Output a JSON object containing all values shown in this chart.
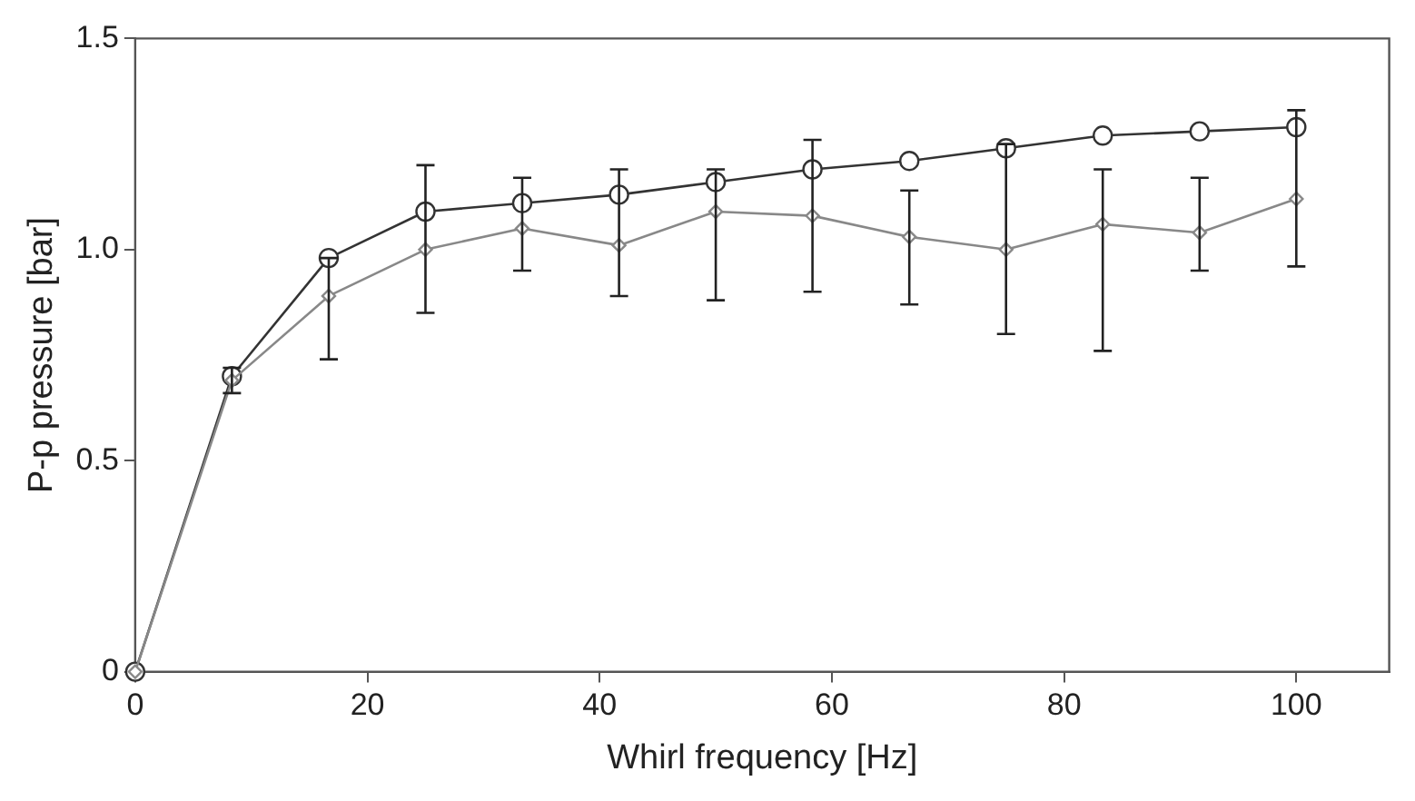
{
  "chart_data": {
    "type": "line",
    "xlabel": "Whirl frequency [Hz]",
    "ylabel": "P-p pressure [bar]",
    "xlim": [
      0,
      108
    ],
    "xticks": [
      0,
      20,
      40,
      60,
      80,
      100
    ],
    "ylim": [
      0,
      1.5
    ],
    "yticks": [
      0,
      0.5,
      {
        "value": 1,
        "label": "1.0"
      },
      1.5
    ],
    "grid": false,
    "legend": false,
    "line_style": "solid",
    "series": [
      {
        "color": "#333333",
        "marker": "circle",
        "x": [
          0,
          8.33,
          16.67,
          25,
          33.33,
          41.67,
          50,
          58.33,
          66.67,
          75,
          83.33,
          91.67,
          100
        ],
        "values": [
          0,
          0.7,
          0.98,
          1.09,
          1.11,
          1.13,
          1.16,
          1.19,
          1.21,
          1.24,
          1.27,
          1.28,
          1.29
        ]
      },
      {
        "color": "#888888",
        "marker": "diamond",
        "x": [
          0,
          8.33,
          16.67,
          25,
          33.33,
          41.67,
          50,
          58.33,
          66.67,
          75,
          83.33,
          91.67,
          100
        ],
        "values": [
          0,
          0.69,
          0.89,
          1.0,
          1.05,
          1.01,
          1.09,
          1.08,
          1.03,
          1.0,
          1.06,
          1.04,
          1.12
        ],
        "errors": [
          null,
          [
            0.66,
            0.72
          ],
          [
            0.74,
            0.98
          ],
          [
            0.85,
            1.2
          ],
          [
            0.95,
            1.17
          ],
          [
            0.89,
            1.19
          ],
          [
            0.88,
            1.19
          ],
          [
            0.9,
            1.26
          ],
          [
            0.87,
            1.14
          ],
          [
            0.8,
            1.25
          ],
          [
            0.76,
            1.19
          ],
          [
            0.95,
            1.17
          ],
          [
            0.96,
            1.33
          ]
        ]
      }
    ]
  }
}
